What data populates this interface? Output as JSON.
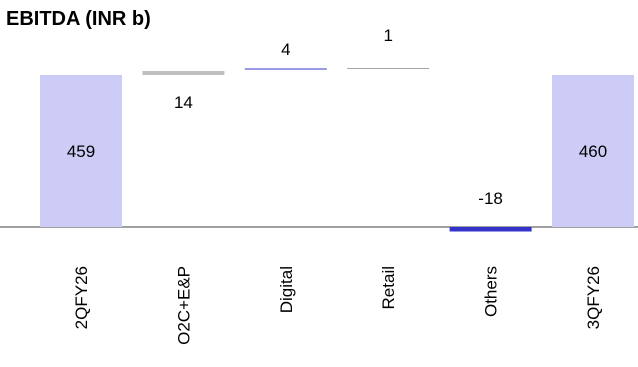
{
  "chart_data": {
    "type": "bar",
    "subtype": "waterfall",
    "title": "EBITDA (INR b)",
    "categories": [
      "2QFY26",
      "O2C+E&P",
      "Digital",
      "Retail",
      "Others",
      "3QFY26"
    ],
    "values": [
      459,
      14,
      4,
      1,
      -18,
      460
    ],
    "data_labels": [
      "459",
      "14",
      "4",
      "1",
      "-18",
      "460"
    ],
    "bar_kinds": [
      "total",
      "delta",
      "delta",
      "delta",
      "delta",
      "total"
    ],
    "colors": {
      "total": "#ccccf7",
      "O2C+E&P": "#bfbfbf",
      "Digital": "#9999e6",
      "Retail": "#a6a6a6",
      "Others": "#3333cc",
      "axis": "#808080"
    },
    "xlabel": "",
    "ylabel": "",
    "grid": false,
    "legend": "none"
  }
}
